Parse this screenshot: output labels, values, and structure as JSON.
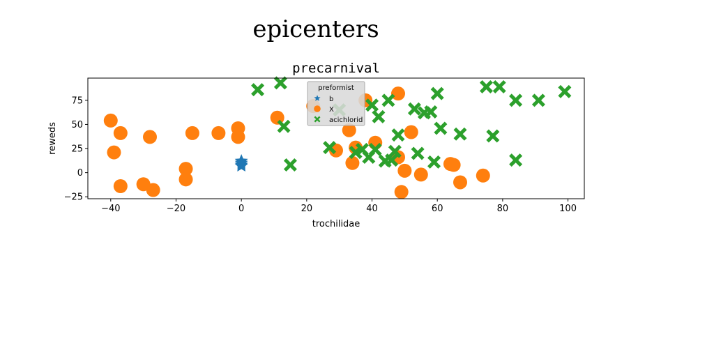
{
  "figure": {
    "suptitle": "epicenters"
  },
  "chart_data": {
    "type": "scatter",
    "title": "precarnival",
    "xlabel": "trochilidae",
    "ylabel": "reweds",
    "xlim": [
      -47,
      105
    ],
    "ylim": [
      -27,
      98
    ],
    "xticks": [
      -40,
      -20,
      0,
      20,
      40,
      60,
      80,
      100
    ],
    "yticks": [
      -25,
      0,
      25,
      50,
      75
    ],
    "grid": false,
    "legend": {
      "title": "preformist",
      "placement": "top-center"
    },
    "series": [
      {
        "name": "b",
        "marker": "star",
        "color": "#1f77b4",
        "points": [
          [
            0,
            12
          ],
          [
            0,
            10
          ],
          [
            0,
            8
          ],
          [
            0,
            7
          ]
        ]
      },
      {
        "name": "X",
        "marker": "circle",
        "color": "#ff7f0e",
        "points": [
          [
            -40,
            54
          ],
          [
            -39,
            21
          ],
          [
            -37,
            41
          ],
          [
            -37,
            -14
          ],
          [
            -30,
            -12
          ],
          [
            -28,
            37
          ],
          [
            -27,
            -18
          ],
          [
            -17,
            4
          ],
          [
            -17,
            -7
          ],
          [
            -15,
            41
          ],
          [
            -7,
            41
          ],
          [
            -1,
            46
          ],
          [
            -1,
            37
          ],
          [
            11,
            57
          ],
          [
            22,
            69
          ],
          [
            29,
            23
          ],
          [
            33,
            44
          ],
          [
            34,
            10
          ],
          [
            35,
            26
          ],
          [
            38,
            75
          ],
          [
            41,
            31
          ],
          [
            48,
            82
          ],
          [
            48,
            16
          ],
          [
            49,
            -20
          ],
          [
            50,
            2
          ],
          [
            52,
            42
          ],
          [
            55,
            -2
          ],
          [
            64,
            9
          ],
          [
            65,
            8
          ],
          [
            67,
            -10
          ],
          [
            74,
            -3
          ]
        ]
      },
      {
        "name": "acichlorid",
        "marker": "x",
        "color": "#2ca02c",
        "points": [
          [
            5,
            86
          ],
          [
            12,
            93
          ],
          [
            13,
            48
          ],
          [
            15,
            8
          ],
          [
            27,
            26
          ],
          [
            30,
            65
          ],
          [
            35,
            21
          ],
          [
            37,
            24
          ],
          [
            39,
            16
          ],
          [
            40,
            70
          ],
          [
            41,
            24
          ],
          [
            42,
            58
          ],
          [
            44,
            12
          ],
          [
            45,
            75
          ],
          [
            46,
            13
          ],
          [
            47,
            22
          ],
          [
            48,
            39
          ],
          [
            53,
            66
          ],
          [
            54,
            20
          ],
          [
            56,
            62
          ],
          [
            58,
            63
          ],
          [
            59,
            11
          ],
          [
            60,
            82
          ],
          [
            61,
            46
          ],
          [
            67,
            40
          ],
          [
            75,
            89
          ],
          [
            77,
            38
          ],
          [
            79,
            89
          ],
          [
            84,
            75
          ],
          [
            84,
            13
          ],
          [
            91,
            75
          ],
          [
            99,
            84
          ]
        ]
      }
    ]
  }
}
